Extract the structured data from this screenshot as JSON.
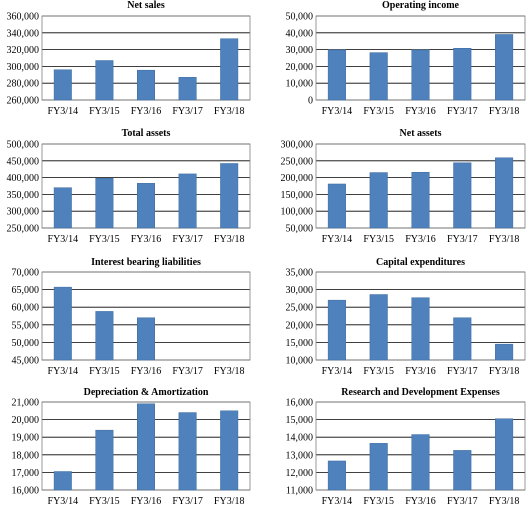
{
  "page": {},
  "colors": {
    "bar": "#4f81bd",
    "bar_edge": "#3a6a9f",
    "grid": "#000000",
    "axis": "#7f7f7f"
  },
  "chart_data": [
    {
      "type": "bar",
      "title": "Net sales",
      "categories": [
        "FY3/14",
        "FY3/15",
        "FY3/16",
        "FY3/17",
        "FY3/18"
      ],
      "values": [
        296000,
        307000,
        295500,
        287000,
        333000
      ],
      "ylim": [
        260000,
        360000
      ],
      "yticks": [
        "260,000",
        "280,000",
        "300,000",
        "320,000",
        "340,000",
        "360,000"
      ],
      "ytick_values": [
        260000,
        280000,
        300000,
        320000,
        340000,
        360000
      ],
      "xlabel": "",
      "ylabel": "",
      "grid": true
    },
    {
      "type": "bar",
      "title": "Operating income",
      "categories": [
        "FY3/14",
        "FY3/15",
        "FY3/16",
        "FY3/17",
        "FY3/18"
      ],
      "values": [
        29800,
        28200,
        29800,
        30800,
        39000
      ],
      "ylim": [
        0,
        50000
      ],
      "yticks": [
        "0",
        "10,000",
        "20,000",
        "30,000",
        "40,000",
        "50,000"
      ],
      "ytick_values": [
        0,
        10000,
        20000,
        30000,
        40000,
        50000
      ],
      "xlabel": "",
      "ylabel": "",
      "grid": true
    },
    {
      "type": "bar",
      "title": "Total assets",
      "categories": [
        "FY3/14",
        "FY3/15",
        "FY3/16",
        "FY3/17",
        "FY3/18"
      ],
      "values": [
        370000,
        398000,
        383000,
        411000,
        442000
      ],
      "ylim": [
        250000,
        500000
      ],
      "yticks": [
        "250,000",
        "300,000",
        "350,000",
        "400,000",
        "450,000",
        "500,000"
      ],
      "ytick_values": [
        250000,
        300000,
        350000,
        400000,
        450000,
        500000
      ],
      "xlabel": "",
      "ylabel": "",
      "grid": true
    },
    {
      "type": "bar",
      "title": "Net assets",
      "categories": [
        "FY3/14",
        "FY3/15",
        "FY3/16",
        "FY3/17",
        "FY3/18"
      ],
      "values": [
        181000,
        215000,
        216000,
        244000,
        259000
      ],
      "ylim": [
        50000,
        300000
      ],
      "yticks": [
        "50,000",
        "100,000",
        "150,000",
        "200,000",
        "250,000",
        "300,000"
      ],
      "ytick_values": [
        50000,
        100000,
        150000,
        200000,
        250000,
        300000
      ],
      "xlabel": "",
      "ylabel": "",
      "grid": true
    },
    {
      "type": "bar",
      "title": "Interest bearing liabilities",
      "categories": [
        "FY3/14",
        "FY3/15",
        "FY3/16",
        "FY3/17",
        "FY3/18"
      ],
      "values": [
        65700,
        58800,
        57000,
        null,
        null
      ],
      "ylim": [
        45000,
        70000
      ],
      "yticks": [
        "45,000",
        "50,000",
        "55,000",
        "60,000",
        "65,000",
        "70,000"
      ],
      "ytick_values": [
        45000,
        50000,
        55000,
        60000,
        65000,
        70000
      ],
      "xlabel": "",
      "ylabel": "",
      "grid": true
    },
    {
      "type": "bar",
      "title": "Capital expenditures",
      "categories": [
        "FY3/14",
        "FY3/15",
        "FY3/16",
        "FY3/17",
        "FY3/18"
      ],
      "values": [
        27000,
        28600,
        27700,
        22000,
        14500
      ],
      "ylim": [
        10000,
        35000
      ],
      "yticks": [
        "10,000",
        "15,000",
        "20,000",
        "25,000",
        "30,000",
        "35,000"
      ],
      "ytick_values": [
        10000,
        15000,
        20000,
        25000,
        30000,
        35000
      ],
      "xlabel": "",
      "ylabel": "",
      "grid": true
    },
    {
      "type": "bar",
      "title": "Depreciation & Amortization",
      "categories": [
        "FY3/14",
        "FY3/15",
        "FY3/16",
        "FY3/17",
        "FY3/18"
      ],
      "values": [
        17050,
        19400,
        20900,
        20400,
        20500
      ],
      "ylim": [
        16000,
        21000
      ],
      "yticks": [
        "16,000",
        "17,000",
        "18,000",
        "19,000",
        "20,000",
        "21,000"
      ],
      "ytick_values": [
        16000,
        17000,
        18000,
        19000,
        20000,
        21000
      ],
      "xlabel": "",
      "ylabel": "",
      "grid": true
    },
    {
      "type": "bar",
      "title": "Research and Development Expenses",
      "categories": [
        "FY3/14",
        "FY3/15",
        "FY3/16",
        "FY3/17",
        "FY3/18"
      ],
      "values": [
        12650,
        13650,
        14150,
        13250,
        15050
      ],
      "ylim": [
        11000,
        16000
      ],
      "yticks": [
        "11,000",
        "12,000",
        "13,000",
        "14,000",
        "15,000",
        "16,000"
      ],
      "ytick_values": [
        11000,
        12000,
        13000,
        14000,
        15000,
        16000
      ],
      "xlabel": "",
      "ylabel": "",
      "grid": true
    }
  ]
}
